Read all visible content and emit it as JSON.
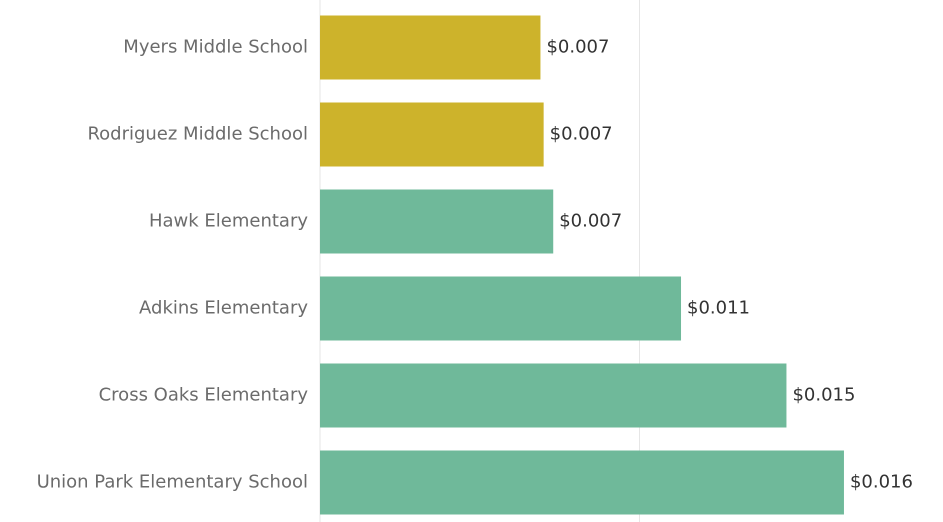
{
  "chart_data": {
    "type": "bar",
    "orientation": "horizontal",
    "categories": [
      "Myers Middle School",
      "Rodriguez Middle School",
      "Hawk Elementary",
      "Adkins Elementary",
      "Cross Oaks Elementary",
      "Union Park Elementary School"
    ],
    "values": [
      0.0069,
      0.007,
      0.0073,
      0.0113,
      0.0146,
      0.0164
    ],
    "value_labels": [
      "$0.007",
      "$0.007",
      "$0.007",
      "$0.011",
      "$0.015",
      "$0.016"
    ],
    "colors": [
      "#cdb32b",
      "#cdb32b",
      "#6fb99a",
      "#6fb99a",
      "#6fb99a",
      "#6fb99a"
    ],
    "xlim": [
      0,
      0.0195
    ],
    "xticks": [
      0,
      0.01
    ],
    "grid": true
  }
}
